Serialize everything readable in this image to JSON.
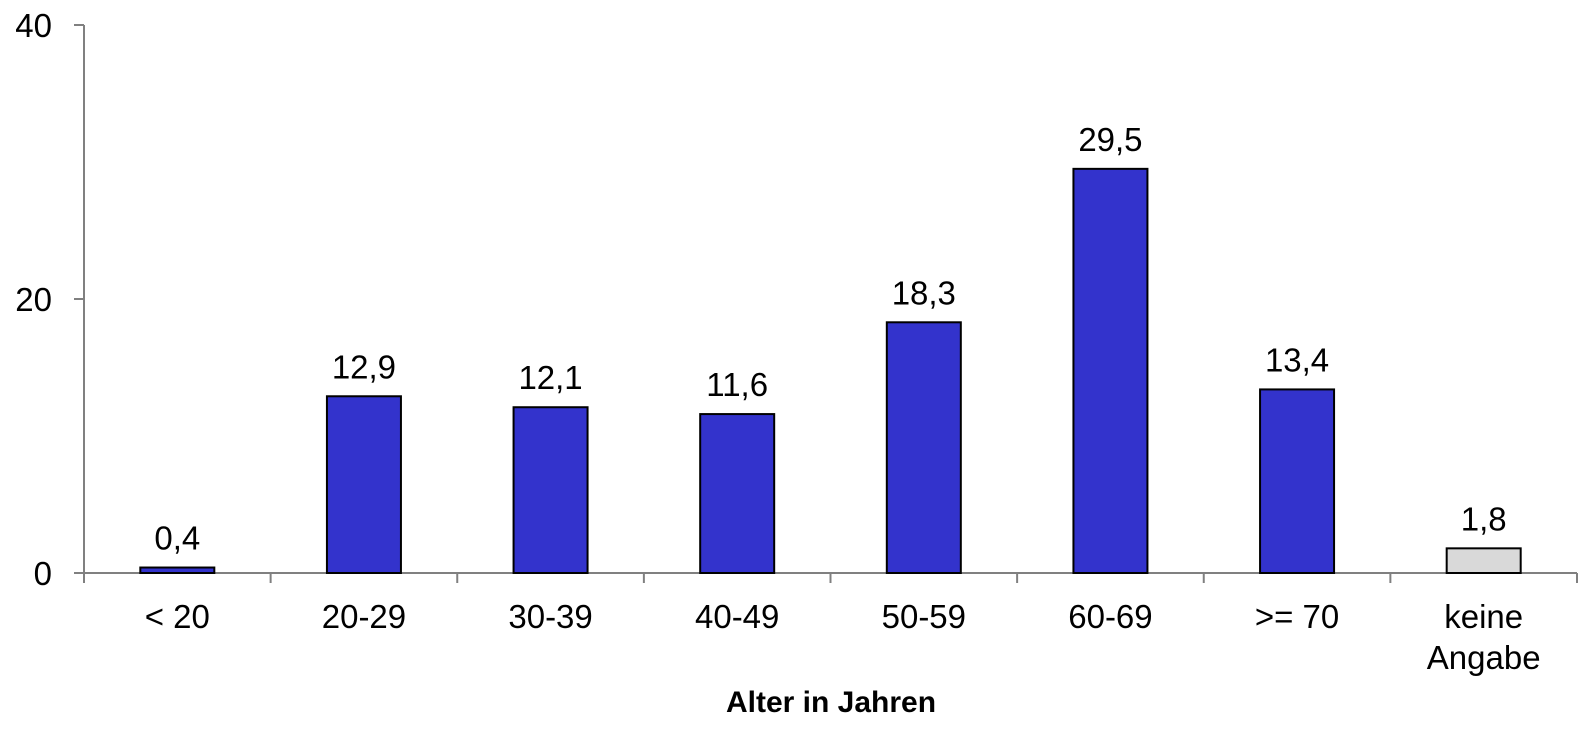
{
  "chart_data": {
    "type": "bar",
    "title": "",
    "xlabel": "Alter in Jahren",
    "ylabel": "",
    "ylim": [
      0,
      40
    ],
    "yticks": [
      0,
      20,
      40
    ],
    "grid": false,
    "legend": "none",
    "categories": [
      [
        "< 20"
      ],
      [
        "20-29"
      ],
      [
        "30-39"
      ],
      [
        "40-49"
      ],
      [
        "50-59"
      ],
      [
        "60-69"
      ],
      [
        ">= 70"
      ],
      [
        "keine",
        "Angabe"
      ]
    ],
    "values": [
      0.4,
      12.9,
      12.1,
      11.6,
      18.3,
      29.5,
      13.4,
      1.8
    ],
    "value_labels": [
      "0,4",
      "12,9",
      "12,1",
      "11,6",
      "18,3",
      "29,5",
      "13,4",
      "1,8"
    ],
    "bar_colors": [
      "#3333cc",
      "#3333cc",
      "#3333cc",
      "#3333cc",
      "#3333cc",
      "#3333cc",
      "#3333cc",
      "#d9d9d9"
    ],
    "bar_outline_color": "#000000",
    "axis_color": "#808080"
  }
}
